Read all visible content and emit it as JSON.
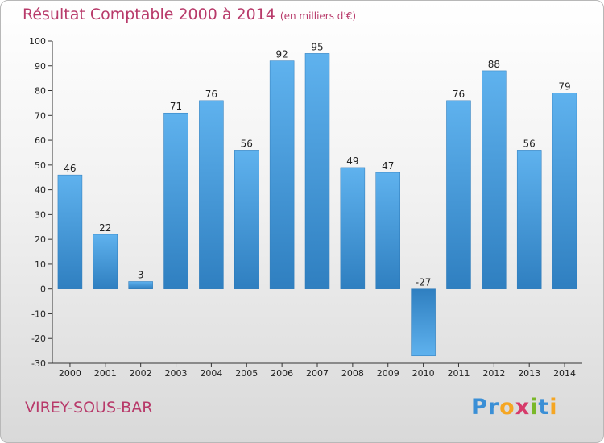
{
  "header": {
    "title": "Résultat Comptable 2000 à 2014",
    "unit": "(en milliers d'€)"
  },
  "footer": {
    "commune": "VIREY-SOUS-BAR",
    "logo_letters": [
      "P",
      "r",
      "o",
      "x",
      "i",
      "t",
      "i"
    ],
    "logo_colors": [
      "#3a8fd6",
      "#3a8fd6",
      "#f5a623",
      "#d63a6a",
      "#7ab829",
      "#3a8fd6",
      "#f5a623"
    ]
  },
  "colors": {
    "bar": "#4a9ee0",
    "bar_light": "#5eb0ec",
    "bar_dark": "#2f7fc0",
    "title": "#b83a6a"
  },
  "chart_data": {
    "type": "bar",
    "title": "Résultat Comptable 2000 à 2014",
    "xlabel": "",
    "ylabel": "(en milliers d'€)",
    "ylim": [
      -30,
      100
    ],
    "yticks": [
      -30,
      -20,
      -10,
      0,
      10,
      20,
      30,
      40,
      50,
      60,
      70,
      80,
      90,
      100
    ],
    "grid": false,
    "categories": [
      "2000",
      "2001",
      "2002",
      "2003",
      "2004",
      "2005",
      "2006",
      "2007",
      "2008",
      "2009",
      "2010",
      "2011",
      "2012",
      "2013",
      "2014"
    ],
    "values": [
      46,
      22,
      3,
      71,
      76,
      56,
      92,
      95,
      49,
      47,
      -27,
      76,
      88,
      56,
      79
    ]
  }
}
